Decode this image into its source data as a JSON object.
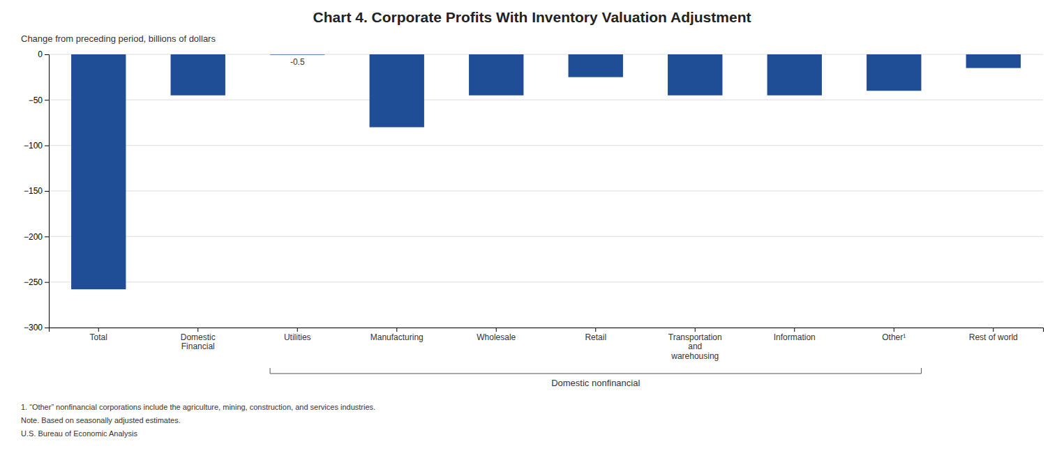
{
  "chart_data": {
    "type": "bar",
    "title": "Chart 4. Corporate Profits With Inventory Valuation Adjustment",
    "ylabel": "Change from preceding period, billions of dollars",
    "categories": [
      "Total",
      "Domestic\nFinancial",
      "Utilities",
      "Manufacturing",
      "Wholesale",
      "Retail",
      "Transportation\nand\nwarehousing",
      "Information",
      "Other¹",
      "Rest of world"
    ],
    "values": [
      -258,
      -45,
      -0.5,
      -80,
      -45,
      -25,
      -45,
      -45,
      -40,
      -15
    ],
    "color": "#1f4e96",
    "ylim": [
      -300,
      0
    ],
    "yticks": [
      0,
      {
        "value": -50,
        "label": "−50"
      },
      {
        "value": -100,
        "label": "−100"
      },
      {
        "value": -150,
        "label": "−150"
      },
      {
        "value": -200,
        "label": "−200"
      },
      {
        "value": -250,
        "label": "−250"
      },
      {
        "value": -300,
        "label": "−300"
      }
    ],
    "grid": true,
    "annotations": [
      {
        "text": "-0.5",
        "x": "Utilities"
      },
      {
        "text": "Domestic nonfinancial",
        "from": "Utilities",
        "to": "Other¹"
      }
    ],
    "footnotes": [
      "1. “Other” nonfinancial corporations include the agriculture, mining, construction, and services industries.",
      "Note. Based on seasonally adjusted estimates.",
      "U.S. Bureau of Economic Analysis"
    ]
  }
}
